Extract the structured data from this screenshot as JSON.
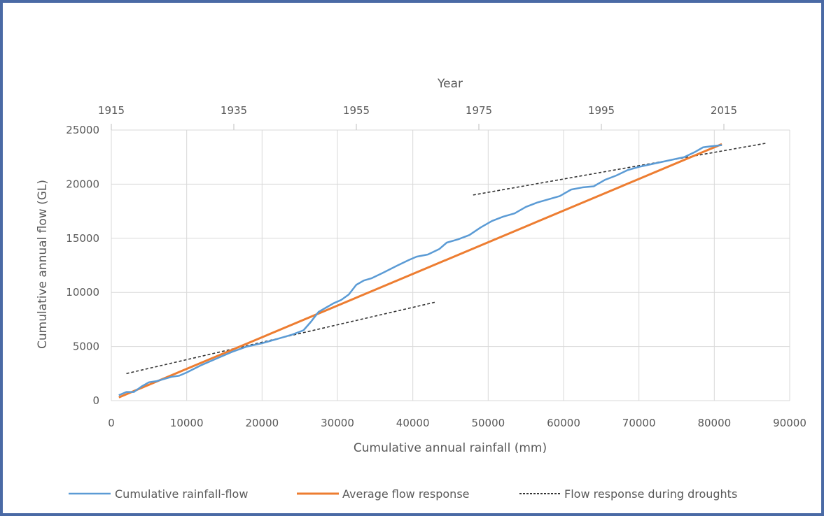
{
  "chart_data": {
    "type": "line",
    "xlabel": "Cumulative annual rainfall (mm)",
    "ylabel": "Cumulative annual flow (GL)",
    "secondary_xlabel": "Year",
    "xlim": [
      0,
      90000
    ],
    "ylim": [
      0,
      25000
    ],
    "x_ticks": [
      "0",
      "10000",
      "20000",
      "30000",
      "40000",
      "50000",
      "60000",
      "70000",
      "80000",
      "90000"
    ],
    "y_ticks": [
      "0",
      "5000",
      "10000",
      "15000",
      "20000",
      "25000"
    ],
    "year_ticks": [
      "1915",
      "1935",
      "1955",
      "1975",
      "1995",
      "2015"
    ],
    "grid": true,
    "legend_position": "bottom",
    "colors": {
      "blue": "#5b9bd5",
      "orange": "#ed7d31",
      "black": "#333333",
      "grid": "#d9d9d9",
      "border": "#4a6aa5"
    },
    "series": [
      {
        "name": "Cumulative rainfall-flow",
        "style": "solid",
        "color": "#5b9bd5",
        "x": [
          1000,
          2000,
          3000,
          4000,
          5000,
          6000,
          7000,
          8000,
          9000,
          10000,
          12000,
          14000,
          16000,
          18000,
          20000,
          22000,
          24000,
          25500,
          26500,
          27500,
          28500,
          29500,
          30500,
          31500,
          32500,
          33500,
          34500,
          36000,
          38000,
          39500,
          40500,
          42000,
          43500,
          44500,
          46000,
          47500,
          49000,
          50500,
          52000,
          53500,
          55000,
          56500,
          58000,
          59500,
          61000,
          62500,
          64000,
          65500,
          67000,
          68500,
          70000,
          72000,
          74000,
          76000,
          77500,
          78500,
          79500,
          81000
        ],
        "y": [
          500,
          800,
          800,
          1300,
          1700,
          1800,
          2000,
          2200,
          2300,
          2600,
          3300,
          3900,
          4500,
          5000,
          5300,
          5700,
          6100,
          6500,
          7300,
          8200,
          8600,
          9000,
          9300,
          9800,
          10700,
          11100,
          11300,
          11800,
          12500,
          13000,
          13300,
          13500,
          14000,
          14600,
          14900,
          15300,
          16000,
          16600,
          17000,
          17300,
          17900,
          18300,
          18600,
          18900,
          19500,
          19700,
          19800,
          20400,
          20800,
          21300,
          21600,
          21900,
          22200,
          22500,
          23000,
          23400,
          23500,
          23600
        ]
      },
      {
        "name": "Average flow response",
        "style": "solid",
        "color": "#ed7d31",
        "x": [
          1000,
          81000
        ],
        "y": [
          300,
          23700
        ]
      },
      {
        "name": "Flow response during droughts",
        "style": "dotted",
        "color": "#333333",
        "segments": [
          {
            "x": [
              2000,
              43000
            ],
            "y": [
              2500,
              9100
            ]
          },
          {
            "x": [
              48000,
              87000
            ],
            "y": [
              19000,
              23800
            ]
          }
        ]
      }
    ]
  }
}
